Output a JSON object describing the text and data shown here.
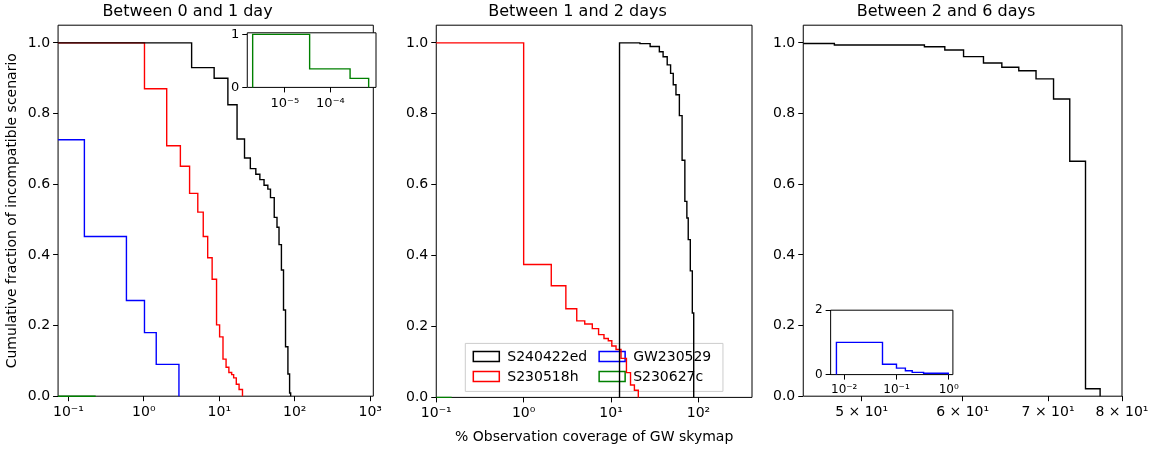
{
  "chart_data": [
    {
      "type": "step",
      "title": "Between 0 and 1 day",
      "ylabel": "Cumulative fraction of incompatible scenario",
      "log": "x",
      "grid": false,
      "line_style": "solid",
      "marker": "none",
      "xlim": [
        0.073,
        1100
      ],
      "xticks": [
        {
          "value": 0.1,
          "label": "10⁻¹"
        },
        {
          "value": 1,
          "label": "10⁰"
        },
        {
          "value": 10,
          "label": "10¹"
        },
        {
          "value": 100,
          "label": "10²"
        },
        {
          "value": 1000,
          "label": "10³"
        }
      ],
      "ylim": [
        0,
        1.05
      ],
      "yticks": [
        {
          "value": 0,
          "label": "0.0"
        },
        {
          "value": 0.2,
          "label": "0.2"
        },
        {
          "value": 0.4,
          "label": "0.4"
        },
        {
          "value": 0.6,
          "label": "0.6"
        },
        {
          "value": 0.8,
          "label": "0.8"
        },
        {
          "value": 1,
          "label": "1.0"
        }
      ],
      "series": [
        {
          "color": "#000000",
          "x": [
            0.073,
            4.3,
            8.55,
            13.0,
            17.2,
            21.6,
            25.8,
            30.5,
            34.5,
            39.2,
            44,
            47.7,
            53.5,
            58.2,
            61.9,
            66.6,
            71,
            75.5,
            81.2,
            85.5,
            88.3
          ],
          "values": [
            1.0,
            0.93,
            0.9,
            0.825,
            0.728,
            0.674,
            0.644,
            0.628,
            0.613,
            0.597,
            0.586,
            0.562,
            0.506,
            0.478,
            0.429,
            0.357,
            0.244,
            0.14,
            0.063,
            0.009,
            0
          ]
        },
        {
          "color": "#ff0000",
          "x": [
            0.073,
            1.02,
            2.01,
            3.05,
            4.04,
            5.19,
            6.13,
            7.02,
            8.04,
            9.2,
            10.1,
            11.2,
            12.3,
            13.4,
            14.6,
            15.5,
            16.8,
            18.3,
            20.3
          ],
          "values": [
            1.0,
            0.87,
            0.709,
            0.651,
            0.574,
            0.521,
            0.452,
            0.392,
            0.331,
            0.202,
            0.168,
            0.105,
            0.082,
            0.067,
            0.061,
            0.052,
            0.034,
            0.019,
            0
          ]
        },
        {
          "color": "#0000ff",
          "x": [
            0.073,
            0.163,
            0.588,
            1.02,
            1.46,
            2.92
          ],
          "values": [
            0.726,
            0.452,
            0.271,
            0.18,
            0.09,
            0
          ]
        },
        {
          "color": "#008000",
          "x": [
            0.073,
            0.23
          ],
          "values": [
            0,
            0
          ]
        }
      ]
    },
    {
      "type": "step",
      "log": "x",
      "grid": false,
      "line_style": "solid",
      "marker": "none",
      "xlim": [
        1.5e-06,
        0.001
      ],
      "xticks": [
        {
          "value": 1e-05,
          "label": "10⁻⁵"
        },
        {
          "value": 0.0001,
          "label": "10⁻⁴"
        }
      ],
      "ylim": [
        0,
        1.03
      ],
      "yticks": [
        0,
        1
      ],
      "series": [
        {
          "color": "#008000",
          "x": [
            1.97e-06,
            1.97e-06,
            3.5e-05,
            0.00027,
            0.00069
          ],
          "values": [
            0,
            1,
            0.35,
            0.17,
            0
          ]
        }
      ]
    },
    {
      "type": "step",
      "title": "Between 1 and 2 days",
      "xlabel": "% Observation coverage of GW skymap",
      "log": "x",
      "grid": false,
      "legend": "bottom",
      "line_style": "solid",
      "marker": "none",
      "xlim": [
        0.1,
        410
      ],
      "xticks": [
        {
          "value": 0.1,
          "label": "10⁻¹"
        },
        {
          "value": 1,
          "label": "10⁰"
        },
        {
          "value": 10,
          "label": "10¹"
        },
        {
          "value": 100,
          "label": "10²"
        }
      ],
      "ylim": [
        0,
        1.05
      ],
      "yticks": [
        {
          "value": 0,
          "label": "0.0"
        },
        {
          "value": 0.2,
          "label": "0.2"
        },
        {
          "value": 0.4,
          "label": "0.4"
        },
        {
          "value": 0.6,
          "label": "0.6"
        },
        {
          "value": 0.8,
          "label": "0.8"
        },
        {
          "value": 1,
          "label": "1.0"
        }
      ],
      "series": [
        {
          "name": "S240422ed",
          "color": "#000000",
          "x": [
            12.5,
            12.5,
            21.4,
            28,
            35.7,
            39.4,
            43.9,
            48,
            51.5,
            55.3,
            60.5,
            65,
            69.9,
            73.7,
            76.4,
            80.7,
            85.1,
            88.3
          ],
          "values": [
            0,
            1.0,
            0.998,
            0.99,
            0.975,
            0.961,
            0.938,
            0.914,
            0.882,
            0.854,
            0.795,
            0.669,
            0.553,
            0.506,
            0.445,
            0.357,
            0.238,
            0
          ]
        },
        {
          "name": "S230518h",
          "color": "#ff0000",
          "x": [
            0.1,
            1.0,
            2.07,
            3.04,
            4.05,
            5.0,
            6.1,
            7.2,
            8.3,
            9.3,
            10.2,
            11.4,
            13,
            15,
            16.7,
            18.5,
            20.5
          ],
          "values": [
            1.0,
            0.375,
            0.315,
            0.25,
            0.216,
            0.207,
            0.194,
            0.177,
            0.166,
            0.16,
            0.145,
            0.135,
            0.11,
            0.07,
            0.035,
            0.02,
            0
          ]
        },
        {
          "name": "GW230529",
          "color": "#0000ff"
        },
        {
          "name": "S230627c",
          "color": "#008000",
          "x": [
            0.1,
            0.15
          ],
          "values": [
            0,
            0
          ]
        }
      ]
    },
    {
      "type": "step",
      "title": "Between 2 and 6 days",
      "log": "x",
      "grid": false,
      "line_style": "solid",
      "marker": "none",
      "xlim": [
        45,
        80
      ],
      "xticks": [
        {
          "value": 50,
          "label": "5 × 10¹"
        },
        {
          "value": 60,
          "label": "6 × 10¹"
        },
        {
          "value": 70,
          "label": "7 × 10¹"
        },
        {
          "value": 80,
          "label": "8 × 10¹"
        }
      ],
      "ylim": [
        0,
        1.05
      ],
      "yticks": [
        {
          "value": 0,
          "label": "0.0"
        },
        {
          "value": 0.2,
          "label": "0.2"
        },
        {
          "value": 0.4,
          "label": "0.4"
        },
        {
          "value": 0.6,
          "label": "0.6"
        },
        {
          "value": 0.8,
          "label": "0.8"
        },
        {
          "value": 1,
          "label": "1.0"
        }
      ],
      "series": [
        {
          "color": "#000000",
          "x": [
            45,
            47.6,
            56.0,
            58.1,
            60.1,
            62.3,
            64.4,
            66.4,
            68.5,
            70.7,
            72.8,
            74.9,
            76.9
          ],
          "values": [
            0.998,
            0.994,
            0.989,
            0.98,
            0.961,
            0.943,
            0.931,
            0.921,
            0.898,
            0.841,
            0.665,
            0.021,
            0
          ]
        }
      ]
    },
    {
      "type": "step",
      "log": "x",
      "grid": false,
      "line_style": "solid",
      "marker": "none",
      "xlim": [
        0.0055,
        1.2
      ],
      "xticks": [
        {
          "value": 0.01,
          "label": "10⁻²"
        },
        {
          "value": 0.1,
          "label": "10⁻¹"
        },
        {
          "value": 1,
          "label": "10⁰"
        }
      ],
      "ylim": [
        0,
        2
      ],
      "yticks": [
        0,
        2
      ],
      "series": [
        {
          "color": "#0000ff",
          "x": [
            0.0071,
            0.0071,
            0.054,
            0.1,
            0.148,
            0.2,
            0.33,
            0.98
          ],
          "values": [
            0,
            1.0,
            0.32,
            0.2,
            0.12,
            0.07,
            0.04,
            0
          ]
        }
      ]
    }
  ]
}
